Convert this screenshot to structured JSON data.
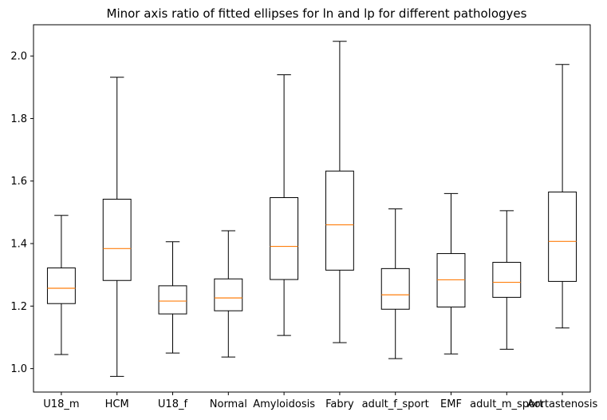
{
  "chart_data": {
    "type": "box",
    "title": "Minor axis ratio of fitted ellipses for ln and lp for different pathologyes",
    "xlabel": "",
    "ylabel": "",
    "ylim": [
      0.925,
      2.1
    ],
    "yticks": [
      1.0,
      1.2,
      1.4,
      1.6,
      1.8,
      2.0
    ],
    "ytick_labels": [
      "1.0",
      "1.2",
      "1.4",
      "1.6",
      "1.8",
      "2.0"
    ],
    "grid": false,
    "box_color": "#000000",
    "median_color": "#ff7f0e",
    "categories": [
      "U18_m",
      "HCM",
      "U18_f",
      "Normal",
      "Amyloidosis",
      "Fabry",
      "adult_f_sport",
      "EMF",
      "adult_m_sport",
      "Aortastenosis"
    ],
    "boxes": [
      {
        "whisker_low": 1.045,
        "q1": 1.208,
        "median": 1.257,
        "q3": 1.322,
        "whisker_high": 1.49
      },
      {
        "whisker_low": 0.975,
        "q1": 1.282,
        "median": 1.384,
        "q3": 1.542,
        "whisker_high": 1.932
      },
      {
        "whisker_low": 1.05,
        "q1": 1.175,
        "median": 1.216,
        "q3": 1.265,
        "whisker_high": 1.406
      },
      {
        "whisker_low": 1.037,
        "q1": 1.185,
        "median": 1.226,
        "q3": 1.287,
        "whisker_high": 1.441
      },
      {
        "whisker_low": 1.106,
        "q1": 1.285,
        "median": 1.391,
        "q3": 1.547,
        "whisker_high": 1.94
      },
      {
        "whisker_low": 1.083,
        "q1": 1.315,
        "median": 1.46,
        "q3": 1.632,
        "whisker_high": 2.047
      },
      {
        "whisker_low": 1.032,
        "q1": 1.19,
        "median": 1.236,
        "q3": 1.32,
        "whisker_high": 1.511
      },
      {
        "whisker_low": 1.047,
        "q1": 1.197,
        "median": 1.284,
        "q3": 1.368,
        "whisker_high": 1.56
      },
      {
        "whisker_low": 1.062,
        "q1": 1.228,
        "median": 1.276,
        "q3": 1.34,
        "whisker_high": 1.505
      },
      {
        "whisker_low": 1.13,
        "q1": 1.279,
        "median": 1.407,
        "q3": 1.565,
        "whisker_high": 1.973
      }
    ]
  }
}
